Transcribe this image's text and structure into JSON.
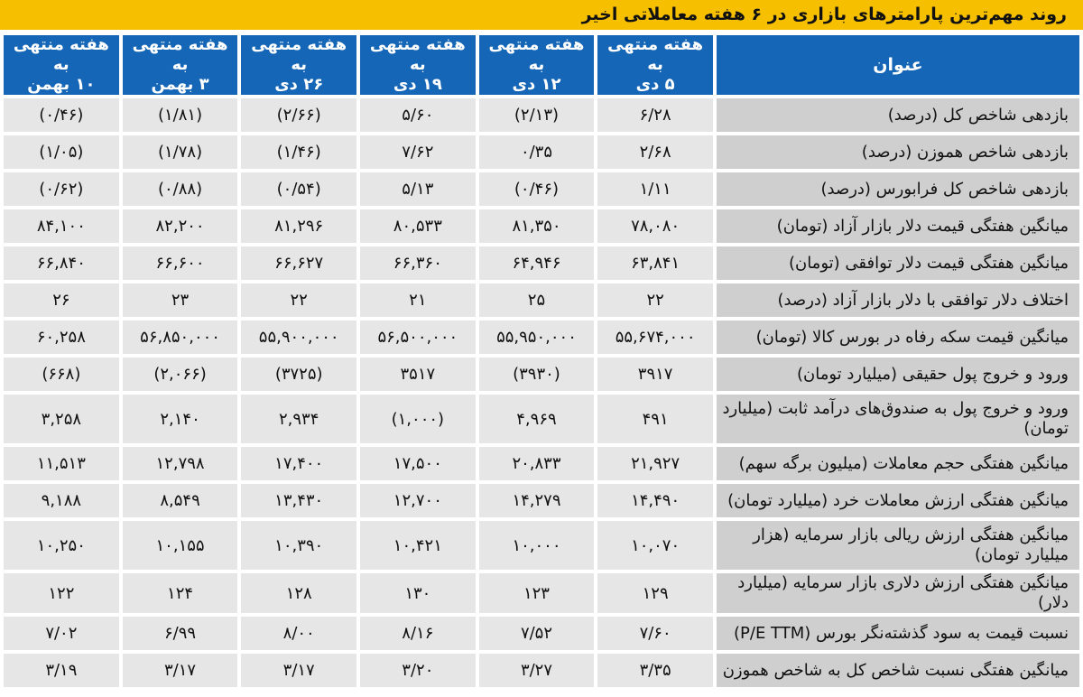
{
  "title": "روند مهم‌ترین پارامترهای بازاری در ۶ هفته معاملاتی اخیر",
  "columns": [
    {
      "line1": "عنوان",
      "line2": ""
    },
    {
      "line1": "هفته منتهی به",
      "line2": "۵ دی"
    },
    {
      "line1": "هفته منتهی به",
      "line2": "۱۲ دی"
    },
    {
      "line1": "هفته منتهی به",
      "line2": "۱۹ دی"
    },
    {
      "line1": "هفته منتهی به",
      "line2": "۲۶ دی"
    },
    {
      "line1": "هفته منتهی به",
      "line2": "۳ بهمن"
    },
    {
      "line1": "هفته منتهی به",
      "line2": "۱۰ بهمن"
    }
  ],
  "rows": [
    {
      "label": "بازدهی شاخص کل (درصد)",
      "values": [
        "۶/۲۸",
        "(۲/۱۳)",
        "۵/۶۰",
        "(۲/۶۶)",
        "(۱/۸۱)",
        "(۰/۴۶)"
      ]
    },
    {
      "label": "بازدهی شاخص هموزن (درصد)",
      "values": [
        "۲/۶۸",
        "۰/۳۵",
        "۷/۶۲",
        "(۱/۴۶)",
        "(۱/۷۸)",
        "(۱/۰۵)"
      ]
    },
    {
      "label": "بازدهی شاخص کل فرابورس (درصد)",
      "values": [
        "۱/۱۱",
        "(۰/۴۶)",
        "۵/۱۳",
        "(۰/۵۴)",
        "(۰/۸۸)",
        "(۰/۶۲)"
      ]
    },
    {
      "label": "میانگین هفتگی قیمت دلار بازار آزاد (تومان)",
      "values": [
        "۷۸,۰۸۰",
        "۸۱,۳۵۰",
        "۸۰,۵۳۳",
        "۸۱,۲۹۶",
        "۸۲,۲۰۰",
        "۸۴,۱۰۰"
      ]
    },
    {
      "label": "میانگین هفتگی قیمت دلار توافقی (تومان)",
      "values": [
        "۶۳,۸۴۱",
        "۶۴,۹۴۶",
        "۶۶,۳۶۰",
        "۶۶,۶۲۷",
        "۶۶,۶۰۰",
        "۶۶,۸۴۰"
      ]
    },
    {
      "label": "اختلاف دلار توافقی با دلار بازار آزاد (درصد)",
      "values": [
        "۲۲",
        "۲۵",
        "۲۱",
        "۲۲",
        "۲۳",
        "۲۶"
      ]
    },
    {
      "label": "میانگین قیمت سکه رفاه در بورس کالا (تومان)",
      "values": [
        "۵۵,۶۷۴,۰۰۰",
        "۵۵,۹۵۰,۰۰۰",
        "۵۶,۵۰۰,۰۰۰",
        "۵۵,۹۰۰,۰۰۰",
        "۵۶,۸۵۰,۰۰۰",
        "۶۰,۲۵۸"
      ]
    },
    {
      "label": "ورود و خروج پول حقیقی (میلیارد تومان)",
      "values": [
        "۳۹۱۷",
        "(۳۹۳۰)",
        "۳۵۱۷",
        "(۳۷۲۵)",
        "(۲,۰۶۶)",
        "(۶۶۸)"
      ]
    },
    {
      "label": "ورود و خروج پول به صندوق‌های درآمد ثابت (میلیارد تومان)",
      "values": [
        "۴۹۱",
        "۴,۹۶۹",
        "(۱,۰۰۰)",
        "۲,۹۳۴",
        "۲,۱۴۰",
        "۳,۲۵۸"
      ]
    },
    {
      "label": "میانگین هفتگی حجم معاملات (میلیون برگه سهم)",
      "values": [
        "۲۱,۹۲۷",
        "۲۰,۸۳۳",
        "۱۷,۵۰۰",
        "۱۷,۴۰۰",
        "۱۲,۷۹۸",
        "۱۱,۵۱۳"
      ]
    },
    {
      "label": "میانگین هفتگی ارزش معاملات خرد (میلیارد تومان)",
      "values": [
        "۱۴,۴۹۰",
        "۱۴,۲۷۹",
        "۱۲,۷۰۰",
        "۱۳,۴۳۰",
        "۸,۵۴۹",
        "۹,۱۸۸"
      ]
    },
    {
      "label": "میانگین هفتگی ارزش ریالی بازار سرمایه (هزار میلیارد تومان)",
      "values": [
        "۱۰,۰۷۰",
        "۱۰,۰۰۰",
        "۱۰,۴۲۱",
        "۱۰,۳۹۰",
        "۱۰,۱۵۵",
        "۱۰,۲۵۰"
      ]
    },
    {
      "label": "میانگین هفتگی ارزش دلاری بازار سرمایه (میلیارد دلار)",
      "values": [
        "۱۲۹",
        "۱۲۳",
        "۱۳۰",
        "۱۲۸",
        "۱۲۴",
        "۱۲۲"
      ]
    },
    {
      "label": "نسبت قیمت به سود گذشته‌نگر بورس (P/E TTM)",
      "values": [
        "۷/۶۰",
        "۷/۵۲",
        "۸/۱۶",
        "۸/۰۰",
        "۶/۹۹",
        "۷/۰۲"
      ]
    },
    {
      "label": "میانگین هفتگی نسبت شاخص کل به شاخص هموزن",
      "values": [
        "۳/۳۵",
        "۳/۲۷",
        "۳/۲۰",
        "۳/۱۷",
        "۳/۱۷",
        "۳/۱۹"
      ]
    }
  ],
  "colors": {
    "title_bg": "#f6c000",
    "header_bg": "#1566b6",
    "label_bg": "#cfcfcf",
    "cell_bg": "#e6e6e6"
  }
}
